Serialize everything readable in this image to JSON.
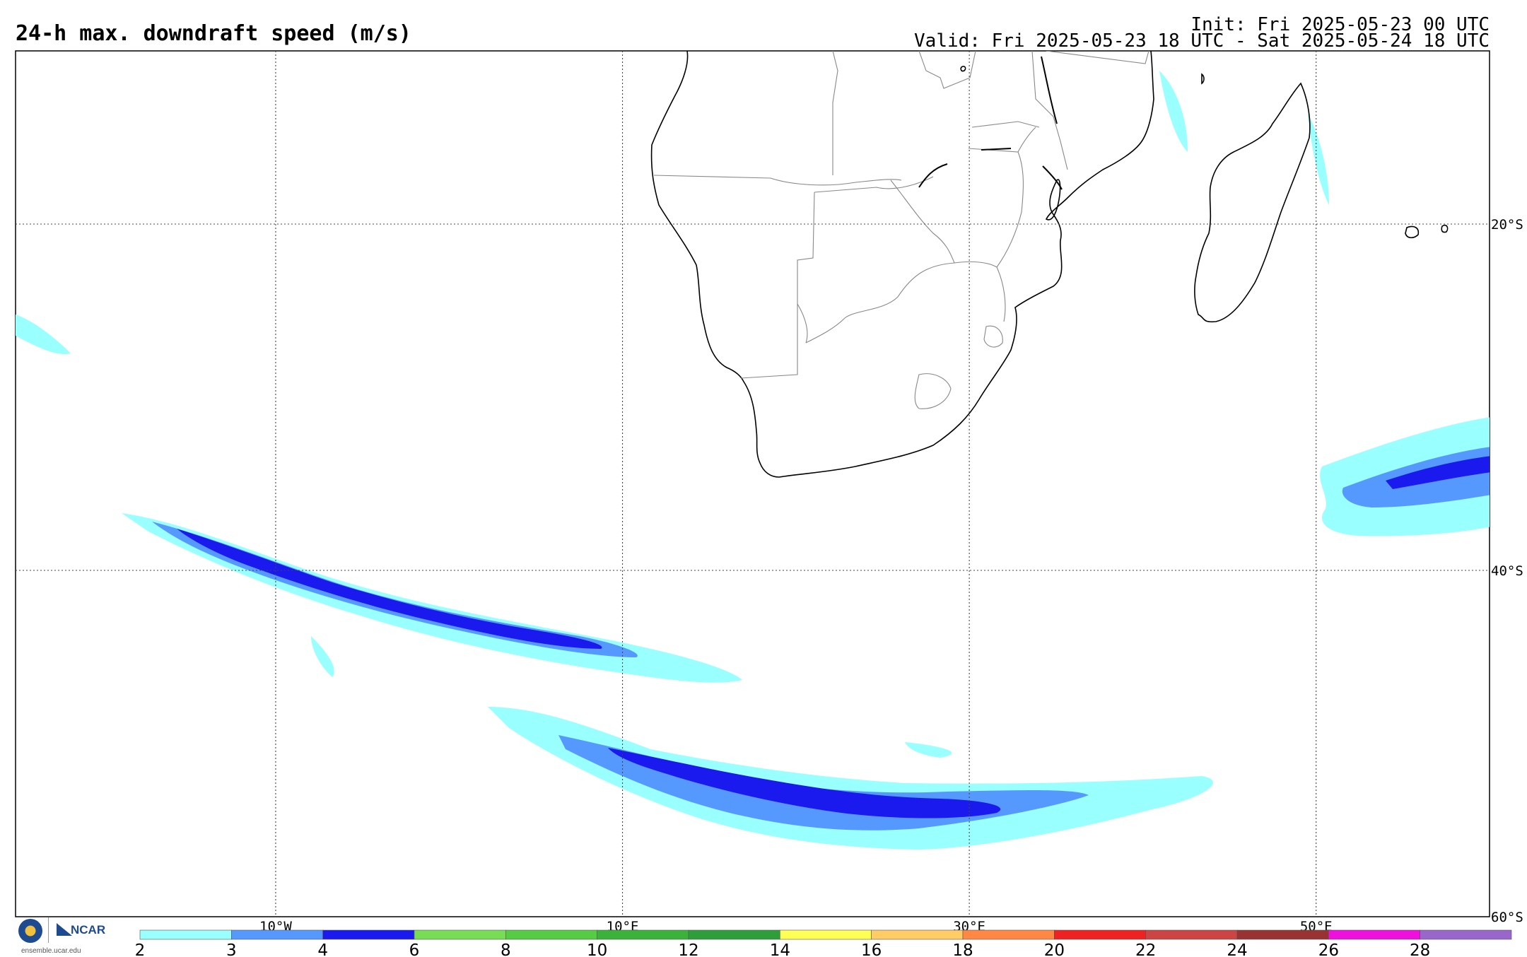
{
  "header": {
    "title": "24-h max. downdraft speed (m/s)",
    "init": "Init: Fri 2025-05-23 00 UTC",
    "valid": "Valid: Fri 2025-05-23 18 UTC - Sat 2025-05-24 18 UTC"
  },
  "map": {
    "lon_range": [
      -25,
      60
    ],
    "lat_range": [
      -60,
      -10
    ],
    "lon_lines": [
      -10,
      10,
      30,
      50
    ],
    "lat_lines": [
      -20,
      -40
    ],
    "lon_labels": [
      "10°W",
      "10°E",
      "30°E",
      "50°E"
    ],
    "lat_labels": [
      "20°S",
      "40°S",
      "60°S"
    ],
    "grid": "dotted"
  },
  "colorbar": {
    "tick_labels": [
      "2",
      "3",
      "4",
      "6",
      "8",
      "10",
      "12",
      "14",
      "16",
      "18",
      "20",
      "22",
      "24",
      "26",
      "28"
    ],
    "colors": [
      "#99ffff",
      "#5599ff",
      "#1a1aee",
      "#77dd55",
      "#55cc44",
      "#3bb33b",
      "#2e9e3a",
      "#ffff55",
      "#ffcc66",
      "#ff8844",
      "#ee2222",
      "#cc4444",
      "#993333",
      "#ee11dd",
      "#9966cc"
    ]
  },
  "footer": {
    "org": "NCAR",
    "site": "ensemble.ucar.edu"
  },
  "colors": {
    "light": "#99ffff",
    "mid": "#5599ff",
    "dark": "#1a1aee"
  }
}
